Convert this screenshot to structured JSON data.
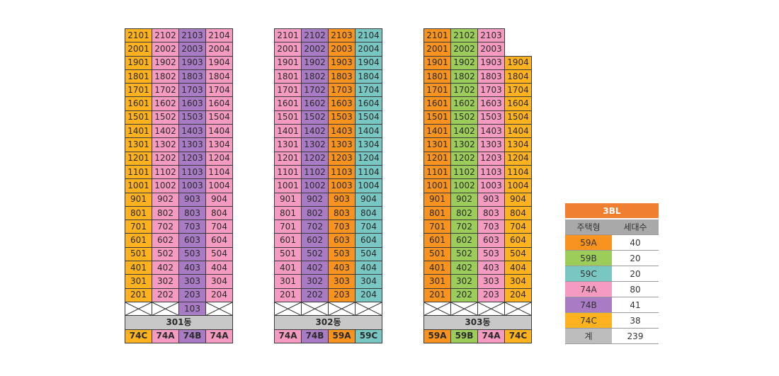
{
  "colors": {
    "59A": "#f7931e",
    "59B": "#9ccc5a",
    "59C": "#79c7c2",
    "74A": "#f59bc1",
    "74B": "#a97bc4",
    "74C": "#ffb21f",
    "name_bg": "#c8c8c8",
    "legend_header": "#f08030"
  },
  "buildings": [
    {
      "name": "301동",
      "types": [
        "74C",
        "74A",
        "74B",
        "74A"
      ],
      "floors": [
        21,
        20,
        19,
        18,
        17,
        16,
        15,
        14,
        13,
        12,
        11,
        10,
        9,
        8,
        7,
        6,
        5,
        4,
        3,
        2
      ],
      "floors_present": [
        [
          21,
          21,
          21,
          21
        ],
        [
          20,
          20,
          20,
          20
        ],
        [
          19,
          19,
          19,
          19
        ],
        [
          18,
          18,
          18,
          18
        ],
        [
          17,
          17,
          17,
          17
        ],
        [
          16,
          16,
          16,
          16
        ],
        [
          15,
          15,
          15,
          15
        ],
        [
          14,
          14,
          14,
          14
        ],
        [
          13,
          13,
          13,
          13
        ],
        [
          12,
          12,
          12,
          12
        ],
        [
          11,
          11,
          11,
          11
        ],
        [
          10,
          10,
          10,
          10
        ],
        [
          9,
          9,
          9,
          9
        ],
        [
          8,
          8,
          8,
          8
        ],
        [
          7,
          7,
          7,
          7
        ],
        [
          6,
          6,
          6,
          6
        ],
        [
          5,
          5,
          5,
          5
        ],
        [
          4,
          4,
          4,
          4
        ],
        [
          3,
          3,
          3,
          3
        ],
        [
          2,
          2,
          2,
          2
        ]
      ],
      "ground": [
        "x",
        "x",
        "103",
        "x"
      ],
      "rows": [
        [
          "2101",
          "2102",
          "2103",
          "2104"
        ],
        [
          "2001",
          "2002",
          "2003",
          "2004"
        ],
        [
          "1901",
          "1902",
          "1903",
          "1904"
        ],
        [
          "1801",
          "1802",
          "1803",
          "1804"
        ],
        [
          "1701",
          "1702",
          "1703",
          "1704"
        ],
        [
          "1601",
          "1602",
          "1603",
          "1604"
        ],
        [
          "1501",
          "1502",
          "1503",
          "1504"
        ],
        [
          "1401",
          "1402",
          "1403",
          "1404"
        ],
        [
          "1301",
          "1302",
          "1303",
          "1304"
        ],
        [
          "1201",
          "1202",
          "1203",
          "1204"
        ],
        [
          "1101",
          "1102",
          "1103",
          "1104"
        ],
        [
          "1001",
          "1002",
          "1003",
          "1004"
        ],
        [
          "901",
          "902",
          "903",
          "904"
        ],
        [
          "801",
          "802",
          "803",
          "804"
        ],
        [
          "701",
          "702",
          "703",
          "704"
        ],
        [
          "601",
          "602",
          "603",
          "604"
        ],
        [
          "501",
          "502",
          "503",
          "504"
        ],
        [
          "401",
          "402",
          "403",
          "404"
        ],
        [
          "301",
          "302",
          "303",
          "304"
        ],
        [
          "201",
          "202",
          "203",
          "204"
        ]
      ]
    },
    {
      "name": "302동",
      "types": [
        "74A",
        "74B",
        "59A",
        "59C"
      ],
      "ground": [
        "x",
        "x",
        "x",
        "x"
      ],
      "rows": [
        [
          "2101",
          "2102",
          "2103",
          "2104"
        ],
        [
          "2001",
          "2002",
          "2003",
          "2004"
        ],
        [
          "1901",
          "1902",
          "1903",
          "1904"
        ],
        [
          "1801",
          "1802",
          "1803",
          "1804"
        ],
        [
          "1701",
          "1702",
          "1703",
          "1704"
        ],
        [
          "1601",
          "1602",
          "1603",
          "1604"
        ],
        [
          "1501",
          "1502",
          "1503",
          "1504"
        ],
        [
          "1401",
          "1402",
          "1403",
          "1404"
        ],
        [
          "1301",
          "1302",
          "1303",
          "1304"
        ],
        [
          "1201",
          "1202",
          "1203",
          "1204"
        ],
        [
          "1101",
          "1102",
          "1103",
          "1104"
        ],
        [
          "1001",
          "1002",
          "1003",
          "1004"
        ],
        [
          "901",
          "902",
          "903",
          "904"
        ],
        [
          "801",
          "802",
          "803",
          "804"
        ],
        [
          "701",
          "702",
          "703",
          "704"
        ],
        [
          "601",
          "602",
          "603",
          "604"
        ],
        [
          "501",
          "502",
          "503",
          "504"
        ],
        [
          "401",
          "402",
          "403",
          "404"
        ],
        [
          "301",
          "302",
          "303",
          "304"
        ],
        [
          "201",
          "202",
          "203",
          "204"
        ]
      ]
    },
    {
      "name": "303동",
      "types": [
        "59A",
        "59B",
        "74A",
        "74C"
      ],
      "ground": [
        "x",
        "x",
        "x",
        "x"
      ],
      "rows": [
        [
          "2101",
          "2102",
          "2103",
          ""
        ],
        [
          "2001",
          "2002",
          "2003",
          ""
        ],
        [
          "1901",
          "1902",
          "1903",
          "1904"
        ],
        [
          "1801",
          "1802",
          "1803",
          "1804"
        ],
        [
          "1701",
          "1702",
          "1703",
          "1704"
        ],
        [
          "1601",
          "1602",
          "1603",
          "1604"
        ],
        [
          "1501",
          "1502",
          "1503",
          "1504"
        ],
        [
          "1401",
          "1402",
          "1403",
          "1404"
        ],
        [
          "1301",
          "1302",
          "1303",
          "1304"
        ],
        [
          "1201",
          "1202",
          "1203",
          "1204"
        ],
        [
          "1101",
          "1102",
          "1103",
          "1104"
        ],
        [
          "1001",
          "1002",
          "1003",
          "1004"
        ],
        [
          "901",
          "902",
          "903",
          "904"
        ],
        [
          "801",
          "802",
          "803",
          "804"
        ],
        [
          "701",
          "702",
          "703",
          "704"
        ],
        [
          "601",
          "602",
          "603",
          "604"
        ],
        [
          "501",
          "502",
          "503",
          "504"
        ],
        [
          "401",
          "402",
          "403",
          "404"
        ],
        [
          "301",
          "302",
          "303",
          "304"
        ],
        [
          "201",
          "202",
          "203",
          "204"
        ]
      ]
    }
  ],
  "legend": {
    "title": "3BL",
    "col_type": "주택형",
    "col_count": "세대수",
    "rows": [
      {
        "type": "59A",
        "count": "40"
      },
      {
        "type": "59B",
        "count": "20"
      },
      {
        "type": "59C",
        "count": "20"
      },
      {
        "type": "74A",
        "count": "80"
      },
      {
        "type": "74B",
        "count": "41"
      },
      {
        "type": "74C",
        "count": "38"
      }
    ],
    "total_label": "계",
    "total_value": "239"
  }
}
